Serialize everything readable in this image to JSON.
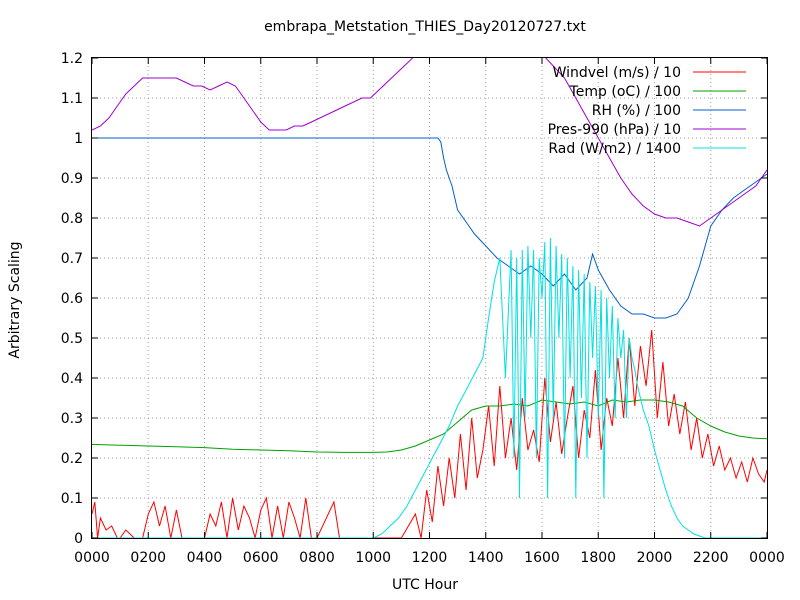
{
  "chart_data": {
    "type": "line",
    "title": "embrapa_Metstation_THIES_Day20120727.txt",
    "xlabel": "UTC Hour",
    "ylabel": "Arbitrary Scaling",
    "xlim": [
      0,
      24
    ],
    "ylim": [
      0,
      1.2
    ],
    "grid": true,
    "legend_position": "top-right",
    "x_ticks": [
      {
        "value": 0,
        "label": "0000"
      },
      {
        "value": 2,
        "label": "0200"
      },
      {
        "value": 4,
        "label": "0400"
      },
      {
        "value": 6,
        "label": "0600"
      },
      {
        "value": 8,
        "label": "0800"
      },
      {
        "value": 10,
        "label": "1000"
      },
      {
        "value": 12,
        "label": "1200"
      },
      {
        "value": 14,
        "label": "1400"
      },
      {
        "value": 16,
        "label": "1600"
      },
      {
        "value": 18,
        "label": "1800"
      },
      {
        "value": 20,
        "label": "2000"
      },
      {
        "value": 22,
        "label": "2200"
      },
      {
        "value": 24,
        "label": "0000"
      }
    ],
    "y_ticks": [
      {
        "value": 0,
        "label": "0"
      },
      {
        "value": 0.1,
        "label": "0.1"
      },
      {
        "value": 0.2,
        "label": "0.2"
      },
      {
        "value": 0.3,
        "label": "0.3"
      },
      {
        "value": 0.4,
        "label": "0.4"
      },
      {
        "value": 0.5,
        "label": "0.5"
      },
      {
        "value": 0.6,
        "label": "0.6"
      },
      {
        "value": 0.7,
        "label": "0.7"
      },
      {
        "value": 0.8,
        "label": "0.8"
      },
      {
        "value": 0.9,
        "label": "0.9"
      },
      {
        "value": 1,
        "label": "1"
      },
      {
        "value": 1.1,
        "label": "1.1"
      },
      {
        "value": 1.2,
        "label": "1.2"
      }
    ],
    "series": [
      {
        "name": "Windvel (m/s) / 10",
        "color": "#ff0000",
        "x": [
          0,
          0.1,
          0.2,
          0.3,
          0.5,
          0.7,
          0.9,
          1.0,
          1.2,
          1.5,
          1.8,
          2.0,
          2.2,
          2.4,
          2.6,
          2.8,
          3.0,
          3.2,
          3.4,
          3.6,
          4.0,
          4.2,
          4.4,
          4.6,
          4.8,
          5.0,
          5.2,
          5.4,
          5.6,
          5.8,
          6.0,
          6.2,
          6.4,
          6.6,
          6.8,
          7.0,
          7.2,
          7.4,
          7.6,
          7.8,
          8.0,
          8.6,
          8.8,
          8.9,
          9.0,
          10.0,
          11.0,
          11.5,
          11.7,
          11.9,
          12.1,
          12.3,
          12.5,
          12.7,
          12.9,
          13.1,
          13.3,
          13.5,
          13.7,
          13.9,
          14.1,
          14.3,
          14.5,
          14.7,
          14.9,
          15.1,
          15.3,
          15.5,
          15.7,
          15.9,
          16.1,
          16.3,
          16.5,
          16.7,
          16.9,
          17.1,
          17.3,
          17.5,
          17.7,
          17.9,
          18.1,
          18.3,
          18.5,
          18.7,
          18.9,
          19.1,
          19.3,
          19.5,
          19.7,
          19.9,
          20.1,
          20.3,
          20.5,
          20.7,
          20.9,
          21.1,
          21.3,
          21.5,
          21.7,
          21.9,
          22.1,
          22.3,
          22.5,
          22.7,
          22.9,
          23.1,
          23.3,
          23.5,
          23.7,
          23.9,
          24.0
        ],
        "y": [
          0.06,
          0.09,
          0.0,
          0.05,
          0.02,
          0.03,
          0.0,
          0.0,
          0.02,
          0.0,
          0.0,
          0.06,
          0.09,
          0.03,
          0.08,
          0.0,
          0.07,
          0.0,
          0.0,
          0.0,
          0.0,
          0.06,
          0.03,
          0.09,
          0.0,
          0.1,
          0.02,
          0.08,
          0.05,
          0.0,
          0.07,
          0.1,
          0.0,
          0.08,
          0.0,
          0.09,
          0.05,
          0.0,
          0.1,
          0.0,
          0.0,
          0.09,
          0.0,
          0.0,
          0.0,
          0.0,
          0.0,
          0.06,
          0.0,
          0.12,
          0.04,
          0.18,
          0.08,
          0.2,
          0.1,
          0.26,
          0.12,
          0.3,
          0.15,
          0.22,
          0.33,
          0.18,
          0.38,
          0.2,
          0.3,
          0.17,
          0.35,
          0.22,
          0.27,
          0.19,
          0.4,
          0.24,
          0.34,
          0.21,
          0.3,
          0.38,
          0.2,
          0.32,
          0.25,
          0.42,
          0.22,
          0.35,
          0.28,
          0.45,
          0.3,
          0.5,
          0.33,
          0.48,
          0.38,
          0.52,
          0.3,
          0.44,
          0.28,
          0.36,
          0.26,
          0.34,
          0.22,
          0.3,
          0.2,
          0.26,
          0.18,
          0.23,
          0.17,
          0.2,
          0.15,
          0.19,
          0.14,
          0.2,
          0.16,
          0.14,
          0.17
        ]
      },
      {
        "name": "Temp (oC) / 100",
        "color": "#00a000",
        "x": [
          0,
          1,
          2,
          3,
          4,
          5,
          6,
          7,
          8,
          9,
          10,
          10.5,
          11,
          11.5,
          12,
          12.5,
          13,
          13.5,
          14,
          14.5,
          15,
          15.5,
          16,
          16.5,
          17,
          17.5,
          18,
          18.5,
          19,
          19.5,
          20,
          20.5,
          21,
          21.5,
          22,
          22.5,
          23,
          23.5,
          24
        ],
        "y": [
          0.234,
          0.232,
          0.23,
          0.228,
          0.226,
          0.222,
          0.22,
          0.218,
          0.215,
          0.214,
          0.214,
          0.215,
          0.22,
          0.23,
          0.245,
          0.26,
          0.29,
          0.32,
          0.33,
          0.33,
          0.335,
          0.33,
          0.345,
          0.34,
          0.335,
          0.34,
          0.33,
          0.345,
          0.34,
          0.345,
          0.345,
          0.34,
          0.33,
          0.3,
          0.28,
          0.265,
          0.255,
          0.25,
          0.248
        ]
      },
      {
        "name": "RH (%) / 100",
        "color": "#0060d0",
        "x": [
          0,
          2,
          4,
          6,
          8,
          10,
          11,
          12,
          12.3,
          12.4,
          12.5,
          12.6,
          12.8,
          13.0,
          13.3,
          13.6,
          14.0,
          14.4,
          14.8,
          15.2,
          15.6,
          16.0,
          16.4,
          16.8,
          17.2,
          17.6,
          17.8,
          18.0,
          18.4,
          18.8,
          19.2,
          19.6,
          20.0,
          20.4,
          20.8,
          21.2,
          21.6,
          22.0,
          22.4,
          22.8,
          23.2,
          23.6,
          24.0
        ],
        "y": [
          1.0,
          1.0,
          1.0,
          1.0,
          1.0,
          1.0,
          1.0,
          1.0,
          1.0,
          0.99,
          0.95,
          0.92,
          0.88,
          0.82,
          0.79,
          0.76,
          0.73,
          0.7,
          0.68,
          0.66,
          0.68,
          0.66,
          0.63,
          0.66,
          0.62,
          0.65,
          0.71,
          0.67,
          0.62,
          0.58,
          0.56,
          0.56,
          0.55,
          0.55,
          0.56,
          0.6,
          0.68,
          0.78,
          0.82,
          0.85,
          0.87,
          0.89,
          0.91
        ]
      },
      {
        "name": "Pres-990 (hPa) / 10",
        "color": "#a000d0",
        "x": [
          0,
          0.3,
          0.6,
          0.9,
          1.2,
          1.5,
          1.8,
          2.1,
          2.4,
          2.7,
          3.0,
          3.3,
          3.6,
          3.9,
          4.2,
          4.5,
          4.8,
          5.1,
          5.4,
          5.7,
          6.0,
          6.3,
          6.6,
          6.9,
          7.2,
          7.5,
          7.8,
          8.1,
          8.4,
          8.7,
          9.0,
          9.3,
          9.6,
          9.9,
          10.2,
          10.5,
          10.8,
          11.1,
          11.4,
          11.7,
          12.0,
          15.5,
          16.0,
          16.4,
          16.8,
          17.2,
          17.6,
          18.0,
          18.4,
          18.8,
          19.2,
          19.6,
          20.0,
          20.4,
          20.8,
          21.2,
          21.6,
          22.0,
          22.4,
          22.8,
          23.2,
          23.6,
          24.0
        ],
        "y": [
          1.02,
          1.03,
          1.05,
          1.08,
          1.11,
          1.13,
          1.15,
          1.15,
          1.15,
          1.15,
          1.15,
          1.14,
          1.13,
          1.13,
          1.12,
          1.13,
          1.14,
          1.13,
          1.1,
          1.07,
          1.04,
          1.02,
          1.02,
          1.02,
          1.03,
          1.03,
          1.04,
          1.05,
          1.06,
          1.07,
          1.08,
          1.09,
          1.1,
          1.1,
          1.12,
          1.14,
          1.16,
          1.18,
          1.2,
          1.22,
          1.24,
          1.24,
          1.21,
          1.18,
          1.15,
          1.1,
          1.05,
          1.0,
          0.95,
          0.9,
          0.86,
          0.83,
          0.81,
          0.8,
          0.8,
          0.79,
          0.78,
          0.8,
          0.82,
          0.84,
          0.86,
          0.88,
          0.92
        ]
      },
      {
        "name": "Rad (W/m2) / 1400",
        "color": "#00e0e0",
        "x": [
          0,
          10.0,
          10.3,
          10.6,
          10.9,
          11.2,
          11.5,
          11.8,
          12.1,
          12.4,
          12.7,
          13.0,
          13.3,
          13.6,
          13.9,
          14.1,
          14.3,
          14.5,
          14.7,
          14.9,
          15.0,
          15.1,
          15.2,
          15.3,
          15.4,
          15.5,
          15.6,
          15.7,
          15.8,
          15.9,
          16.0,
          16.1,
          16.2,
          16.3,
          16.4,
          16.5,
          16.6,
          16.7,
          16.8,
          16.9,
          17.0,
          17.1,
          17.2,
          17.3,
          17.4,
          17.5,
          17.6,
          17.7,
          17.8,
          17.9,
          18.0,
          18.1,
          18.2,
          18.3,
          18.4,
          18.5,
          18.6,
          18.7,
          18.8,
          18.9,
          19.0,
          19.1,
          19.2,
          19.3,
          19.4,
          19.5,
          19.6,
          19.8,
          20.0,
          20.2,
          20.4,
          20.6,
          20.8,
          21.0,
          21.2,
          21.4,
          21.6,
          21.8,
          22.0,
          22.2,
          24.0
        ],
        "y": [
          0,
          0.0,
          0.01,
          0.03,
          0.05,
          0.08,
          0.12,
          0.16,
          0.2,
          0.24,
          0.28,
          0.33,
          0.37,
          0.41,
          0.45,
          0.55,
          0.64,
          0.7,
          0.4,
          0.72,
          0.2,
          0.7,
          0.1,
          0.72,
          0.3,
          0.73,
          0.5,
          0.72,
          0.2,
          0.7,
          0.6,
          0.74,
          0.1,
          0.75,
          0.3,
          0.73,
          0.5,
          0.71,
          0.2,
          0.7,
          0.4,
          0.68,
          0.1,
          0.67,
          0.35,
          0.66,
          0.2,
          0.64,
          0.45,
          0.63,
          0.3,
          0.62,
          0.1,
          0.6,
          0.4,
          0.58,
          0.3,
          0.55,
          0.45,
          0.52,
          0.3,
          0.5,
          0.45,
          0.42,
          0.38,
          0.35,
          0.32,
          0.28,
          0.22,
          0.17,
          0.12,
          0.08,
          0.05,
          0.03,
          0.02,
          0.01,
          0.005,
          0.0,
          0.0,
          0.0,
          0.0
        ]
      }
    ]
  }
}
